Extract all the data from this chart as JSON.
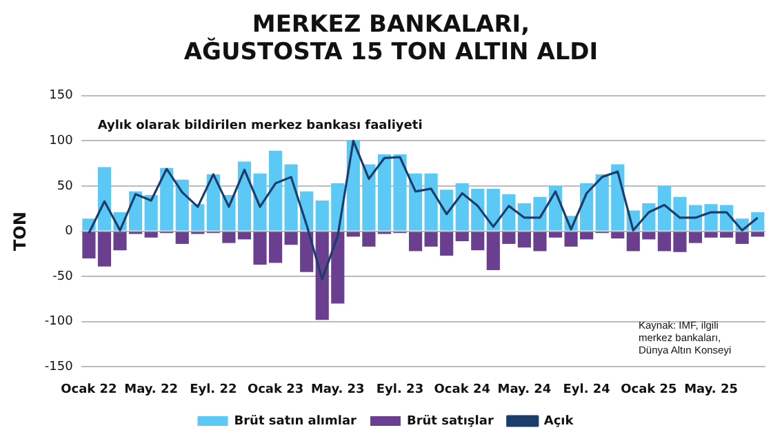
{
  "chart_data": {
    "type": "bar",
    "title": "MERKEZ BANKALARI,\nAĞUSTOSTA 15 TON ALTIN ALDI",
    "subtitle": "Aylık olarak bildirilen merkez bankası faaliyeti",
    "ylabel": "TON",
    "categories": [
      "Ocak 22",
      null,
      null,
      null,
      "May. 22",
      null,
      null,
      null,
      "Eyl. 22",
      null,
      null,
      null,
      "Ocak 23",
      null,
      null,
      null,
      "May. 23",
      null,
      null,
      null,
      "Eyl. 23",
      null,
      null,
      null,
      "Ocak 24",
      null,
      null,
      null,
      "May. 24",
      null,
      null,
      null,
      "Eyl. 24",
      null,
      null,
      null,
      "Ocak 25",
      null,
      null,
      null,
      "May. 25",
      null,
      null,
      null
    ],
    "series": [
      {
        "name": "Brüt satın alımlar",
        "color": "#5bc8f5",
        "values": [
          14,
          71,
          21,
          44,
          40,
          70,
          57,
          30,
          63,
          40,
          77,
          64,
          89,
          74,
          44,
          34,
          53,
          101,
          74,
          85,
          85,
          64,
          64,
          46,
          53,
          47,
          47,
          41,
          31,
          38,
          50,
          17,
          53,
          63,
          74,
          23,
          31,
          50,
          38,
          29,
          30,
          29,
          14,
          21
        ]
      },
      {
        "name": "Brüt satışlar",
        "color": "#6b3f8f",
        "values": [
          -30,
          -39,
          -21,
          -3,
          -7,
          -2,
          -14,
          -3,
          -2,
          -13,
          -9,
          -37,
          -35,
          -15,
          -45,
          -98,
          -80,
          -6,
          -17,
          -3,
          -2,
          -22,
          -17,
          -27,
          -11,
          -21,
          -43,
          -14,
          -18,
          -22,
          -7,
          -17,
          -9,
          -2,
          -8,
          -22,
          -9,
          -22,
          -23,
          -13,
          -7,
          -7,
          -14,
          -6
        ]
      },
      {
        "name": "Açık",
        "type": "line",
        "color": "#1b3d6b",
        "values": [
          -2,
          33,
          1,
          41,
          34,
          69,
          43,
          27,
          63,
          27,
          68,
          27,
          53,
          60,
          7,
          -53,
          -5,
          100,
          58,
          81,
          82,
          44,
          47,
          19,
          42,
          28,
          5,
          28,
          15,
          15,
          44,
          2,
          42,
          60,
          66,
          1,
          21,
          29,
          15,
          15,
          21,
          21,
          1,
          15
        ]
      }
    ],
    "stacked": true,
    "ylim": [
      -150,
      150
    ],
    "yticks": [
      -150,
      -100,
      -50,
      0,
      50,
      100,
      150
    ],
    "grid": "y",
    "legend": "bottom",
    "marker": "none",
    "line_style": "solid",
    "annotations": [
      "Kaynak: IMF, ilgili\nmerkez bankaları,\nDünya Altın Konseyi"
    ]
  }
}
